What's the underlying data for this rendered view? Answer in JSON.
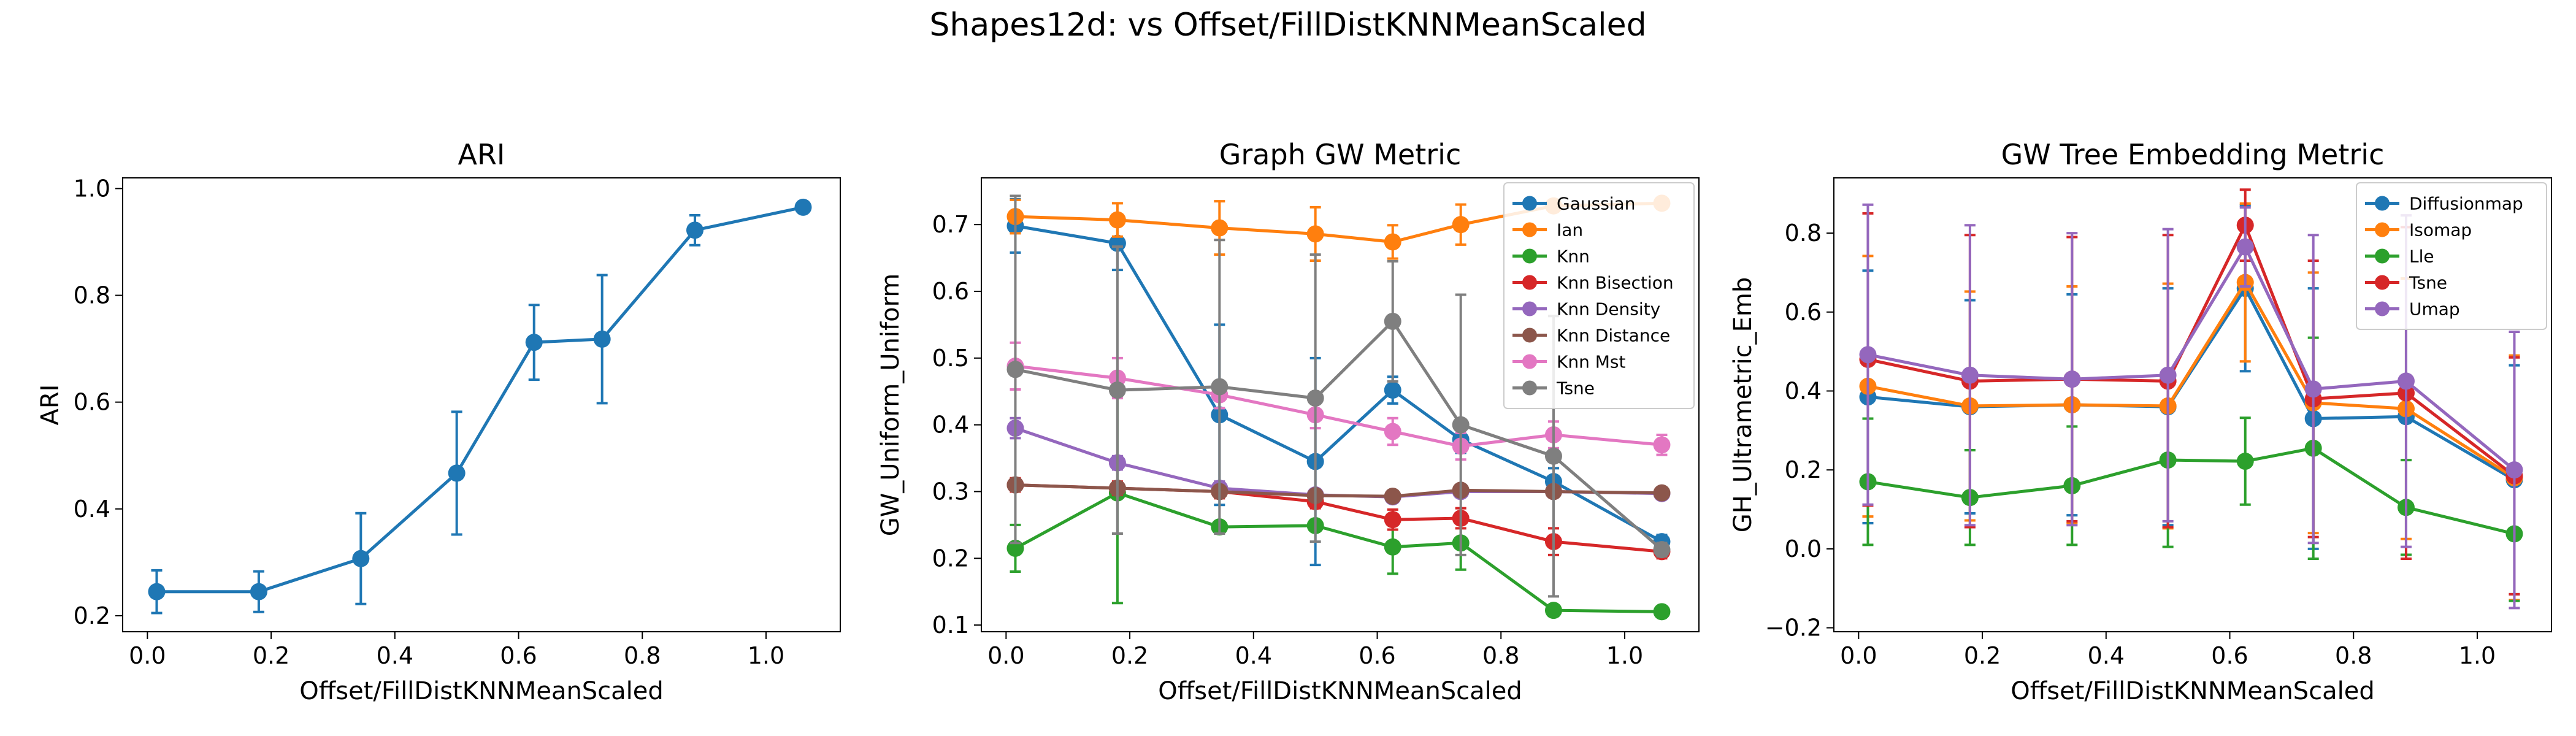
{
  "figure": {
    "suptitle": "Shapes12d: vs Offset/FillDistKNNMeanScaled"
  },
  "chart_data": [
    {
      "type": "line",
      "title": "ARI",
      "xlabel": "Offset/FillDistKNNMeanScaled",
      "ylabel": "ARI",
      "xlim": [
        -0.04,
        1.12
      ],
      "ylim": [
        0.17,
        1.02
      ],
      "xticks": [
        0.0,
        0.2,
        0.4,
        0.6,
        0.8,
        1.0
      ],
      "xtick_labels": [
        "0.0",
        "0.2",
        "0.4",
        "0.6",
        "0.8",
        "1.0"
      ],
      "yticks": [
        0.2,
        0.4,
        0.6,
        0.8,
        1.0
      ],
      "ytick_labels": [
        "0.2",
        "0.4",
        "0.6",
        "0.8",
        "1.0"
      ],
      "grid": false,
      "series": [
        {
          "color": "#1f77b4",
          "x": [
            0.015,
            0.18,
            0.345,
            0.5,
            0.625,
            0.735,
            0.885,
            1.06
          ],
          "y": [
            0.245,
            0.245,
            0.307,
            0.467,
            0.712,
            0.718,
            0.922,
            0.965
          ],
          "err": [
            0.04,
            0.038,
            0.085,
            0.115,
            0.07,
            0.12,
            0.028,
            0.005
          ]
        }
      ]
    },
    {
      "type": "line",
      "title": "Graph GW Metric",
      "xlabel": "Offset/FillDistKNNMeanScaled",
      "ylabel": "GW_Uniform_Uniform",
      "xlim": [
        -0.04,
        1.12
      ],
      "ylim": [
        0.09,
        0.77
      ],
      "xticks": [
        0.0,
        0.2,
        0.4,
        0.6,
        0.8,
        1.0
      ],
      "xtick_labels": [
        "0.0",
        "0.2",
        "0.4",
        "0.6",
        "0.8",
        "1.0"
      ],
      "yticks": [
        0.1,
        0.2,
        0.3,
        0.4,
        0.5,
        0.6,
        0.7
      ],
      "ytick_labels": [
        "0.1",
        "0.2",
        "0.3",
        "0.4",
        "0.5",
        "0.6",
        "0.7"
      ],
      "grid": false,
      "legend_position": "top-right",
      "series": [
        {
          "name": "Gaussian",
          "color": "#1f77b4",
          "x": [
            0.015,
            0.18,
            0.345,
            0.5,
            0.625,
            0.735,
            0.885,
            1.06
          ],
          "y": [
            0.698,
            0.672,
            0.415,
            0.345,
            0.452,
            0.378,
            0.315,
            0.225
          ],
          "err": [
            0.04,
            0.04,
            0.135,
            0.155,
            0.02,
            0.02,
            0.02,
            0.01
          ]
        },
        {
          "name": "Ian",
          "color": "#ff7f0e",
          "x": [
            0.015,
            0.18,
            0.345,
            0.5,
            0.625,
            0.735,
            0.885,
            1.06
          ],
          "y": [
            0.712,
            0.707,
            0.695,
            0.686,
            0.674,
            0.7,
            0.728,
            0.732
          ],
          "err": [
            0.025,
            0.025,
            0.04,
            0.04,
            0.025,
            0.03,
            0.005,
            0.005
          ]
        },
        {
          "name": "Knn",
          "color": "#2ca02c",
          "x": [
            0.015,
            0.18,
            0.345,
            0.5,
            0.625,
            0.735,
            0.885,
            1.06
          ],
          "y": [
            0.215,
            0.298,
            0.247,
            0.249,
            0.217,
            0.223,
            0.122,
            0.12
          ],
          "err": [
            0.035,
            0.165,
            0.005,
            0.005,
            0.04,
            0.04,
            0.0,
            0.0
          ]
        },
        {
          "name": "Knn Bisection",
          "color": "#d62728",
          "x": [
            0.015,
            0.18,
            0.345,
            0.5,
            0.625,
            0.735,
            0.885,
            1.06
          ],
          "y": [
            0.31,
            0.305,
            0.3,
            0.285,
            0.258,
            0.26,
            0.225,
            0.21
          ],
          "err": [
            0.01,
            0.01,
            0.01,
            0.01,
            0.015,
            0.015,
            0.02,
            0.01
          ]
        },
        {
          "name": "Knn Density",
          "color": "#9467bd",
          "x": [
            0.015,
            0.18,
            0.345,
            0.5,
            0.625,
            0.735,
            0.885,
            1.06
          ],
          "y": [
            0.395,
            0.343,
            0.305,
            0.295,
            0.292,
            0.3,
            0.3,
            0.297
          ],
          "err": [
            0.015,
            0.01,
            0.01,
            0.005,
            0.005,
            0.005,
            0.005,
            0.005
          ]
        },
        {
          "name": "Knn Distance",
          "color": "#8c564b",
          "x": [
            0.015,
            0.18,
            0.345,
            0.5,
            0.625,
            0.735,
            0.885,
            1.06
          ],
          "y": [
            0.31,
            0.305,
            0.3,
            0.294,
            0.293,
            0.302,
            0.3,
            0.298
          ],
          "err": [
            0.005,
            0.005,
            0.005,
            0.005,
            0.005,
            0.005,
            0.005,
            0.005
          ]
        },
        {
          "name": "Knn Mst",
          "color": "#e377c2",
          "x": [
            0.015,
            0.18,
            0.345,
            0.5,
            0.625,
            0.735,
            0.885,
            1.06
          ],
          "y": [
            0.488,
            0.47,
            0.445,
            0.415,
            0.39,
            0.368,
            0.385,
            0.37
          ],
          "err": [
            0.035,
            0.03,
            0.02,
            0.02,
            0.02,
            0.02,
            0.02,
            0.015
          ]
        },
        {
          "name": "Tsne",
          "color": "#7f7f7f",
          "x": [
            0.015,
            0.18,
            0.345,
            0.5,
            0.625,
            0.735,
            0.885,
            1.06
          ],
          "y": [
            0.483,
            0.452,
            0.457,
            0.44,
            0.555,
            0.4,
            0.353,
            0.213
          ],
          "err": [
            0.26,
            0.215,
            0.22,
            0.215,
            0.09,
            0.195,
            0.21,
            0.01
          ]
        }
      ]
    },
    {
      "type": "line",
      "title": "GW Tree Embedding Metric",
      "xlabel": "Offset/FillDistKNNMeanScaled",
      "ylabel": "GH_Ultrametric_Emb",
      "xlim": [
        -0.04,
        1.12
      ],
      "ylim": [
        -0.21,
        0.94
      ],
      "xticks": [
        0.0,
        0.2,
        0.4,
        0.6,
        0.8,
        1.0
      ],
      "xtick_labels": [
        "0.0",
        "0.2",
        "0.4",
        "0.6",
        "0.8",
        "1.0"
      ],
      "yticks": [
        -0.2,
        0.0,
        0.2,
        0.4,
        0.6,
        0.8
      ],
      "ytick_labels": [
        "−0.2",
        "0.0",
        "0.2",
        "0.4",
        "0.6",
        "0.8"
      ],
      "grid": false,
      "legend_position": "top-right",
      "series": [
        {
          "name": "Diffusionmap",
          "color": "#1f77b4",
          "x": [
            0.015,
            0.18,
            0.345,
            0.5,
            0.625,
            0.735,
            0.885,
            1.06
          ],
          "y": [
            0.385,
            0.36,
            0.365,
            0.36,
            0.66,
            0.33,
            0.335,
            0.175
          ],
          "err": [
            0.32,
            0.27,
            0.28,
            0.3,
            0.21,
            0.33,
            0.35,
            0.29
          ]
        },
        {
          "name": "Isomap",
          "color": "#ff7f0e",
          "x": [
            0.015,
            0.18,
            0.345,
            0.5,
            0.625,
            0.735,
            0.885,
            1.06
          ],
          "y": [
            0.412,
            0.362,
            0.365,
            0.362,
            0.675,
            0.37,
            0.355,
            0.18
          ],
          "err": [
            0.33,
            0.29,
            0.3,
            0.31,
            0.2,
            0.33,
            0.33,
            0.31
          ]
        },
        {
          "name": "Lle",
          "color": "#2ca02c",
          "x": [
            0.015,
            0.18,
            0.345,
            0.5,
            0.625,
            0.735,
            0.885,
            1.06
          ],
          "y": [
            0.17,
            0.13,
            0.16,
            0.225,
            0.222,
            0.255,
            0.105,
            0.038
          ],
          "err": [
            0.16,
            0.12,
            0.15,
            0.22,
            0.11,
            0.28,
            0.12,
            0.17
          ]
        },
        {
          "name": "Tsne",
          "color": "#d62728",
          "x": [
            0.015,
            0.18,
            0.345,
            0.5,
            0.625,
            0.735,
            0.885,
            1.06
          ],
          "y": [
            0.48,
            0.425,
            0.43,
            0.425,
            0.82,
            0.38,
            0.395,
            0.185
          ],
          "err": [
            0.37,
            0.37,
            0.36,
            0.37,
            0.09,
            0.35,
            0.42,
            0.3
          ]
        },
        {
          "name": "Umap",
          "color": "#9467bd",
          "x": [
            0.015,
            0.18,
            0.345,
            0.5,
            0.625,
            0.735,
            0.885,
            1.06
          ],
          "y": [
            0.492,
            0.44,
            0.43,
            0.44,
            0.765,
            0.405,
            0.425,
            0.2
          ],
          "err": [
            0.38,
            0.38,
            0.37,
            0.37,
            0.1,
            0.39,
            0.42,
            0.35
          ]
        }
      ]
    }
  ]
}
